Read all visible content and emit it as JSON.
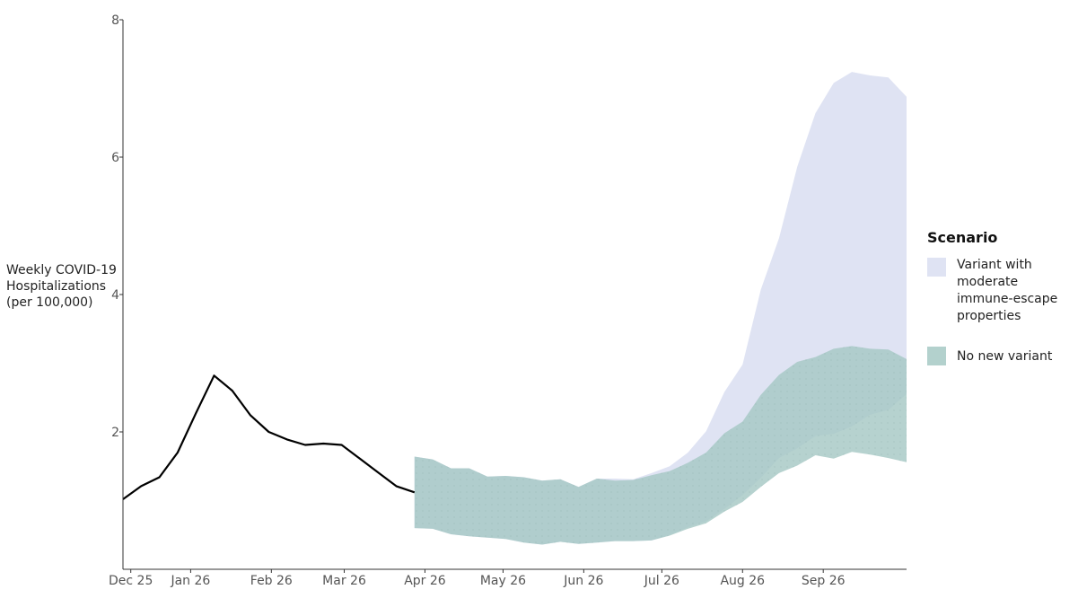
{
  "chart_data": {
    "type": "area",
    "title": "",
    "xlabel": "",
    "ylabel_lines": [
      "Weekly COVID-19",
      "Hospitalizations",
      "(per 100,000)"
    ],
    "ylim": [
      0,
      8
    ],
    "y_ticks": [
      2,
      4,
      6,
      8
    ],
    "x_ticks": [
      "Dec 25",
      "Jan 26",
      "Feb 26",
      "Mar 26",
      "Apr 26",
      "May 26",
      "Jun 26",
      "Jul 26",
      "Aug 26",
      "Sep 26"
    ],
    "observed": {
      "color": "#000000",
      "x": [
        "2025-12-20",
        "2025-12-27",
        "2026-01-03",
        "2026-01-10",
        "2026-01-17",
        "2026-01-24",
        "2026-01-31",
        "2026-02-07",
        "2026-02-14",
        "2026-02-21",
        "2026-02-28",
        "2026-03-07",
        "2026-03-14",
        "2026-03-21",
        "2026-03-28",
        "2026-04-04",
        "2026-04-11"
      ],
      "y": [
        1.02,
        1.21,
        1.34,
        1.7,
        2.27,
        2.82,
        2.6,
        2.24,
        2.0,
        1.89,
        1.81,
        1.83,
        1.81,
        1.61,
        1.41,
        1.21,
        1.12
      ]
    },
    "legend": {
      "title": "Scenario",
      "items": [
        {
          "lines": [
            "Variant with",
            "moderate",
            "immune-escape",
            "properties"
          ],
          "color": "#dfe3f3"
        },
        {
          "lines": [
            "No new variant"
          ],
          "color": "#b3d1cd"
        }
      ]
    },
    "series": [
      {
        "name": "Variant with moderate immune-escape properties",
        "color": "#dfe3f3",
        "opacity": 1,
        "x": [
          "2026-04-11",
          "2026-04-18",
          "2026-04-25",
          "2026-05-02",
          "2026-05-09",
          "2026-05-16",
          "2026-05-23",
          "2026-05-30",
          "2026-06-06",
          "2026-06-13",
          "2026-06-20",
          "2026-06-27",
          "2026-07-04",
          "2026-07-11",
          "2026-07-18",
          "2026-07-25",
          "2026-08-01",
          "2026-08-08",
          "2026-08-15",
          "2026-08-22",
          "2026-08-29",
          "2026-09-05",
          "2026-09-12",
          "2026-09-19",
          "2026-09-26",
          "2026-10-03",
          "2026-10-10",
          "2026-10-17"
        ],
        "lower": [
          0.6,
          0.59,
          0.51,
          0.48,
          0.46,
          0.44,
          0.39,
          0.36,
          0.4,
          0.37,
          0.39,
          0.41,
          0.41,
          0.42,
          0.5,
          0.61,
          0.7,
          0.88,
          1.08,
          1.33,
          1.62,
          1.76,
          1.94,
          1.97,
          2.08,
          2.25,
          2.32,
          2.55
        ],
        "upper": [
          1.64,
          1.6,
          1.47,
          1.47,
          1.35,
          1.36,
          1.34,
          1.29,
          1.31,
          1.2,
          1.32,
          1.32,
          1.31,
          1.4,
          1.5,
          1.7,
          2.01,
          2.58,
          2.98,
          4.07,
          4.82,
          5.86,
          6.64,
          7.08,
          7.24,
          7.19,
          7.16,
          6.88
        ]
      },
      {
        "name": "No new variant",
        "color": "#a6c8c4",
        "opacity": 0.82,
        "x": [
          "2026-04-11",
          "2026-04-18",
          "2026-04-25",
          "2026-05-02",
          "2026-05-09",
          "2026-05-16",
          "2026-05-23",
          "2026-05-30",
          "2026-06-06",
          "2026-06-13",
          "2026-06-20",
          "2026-06-27",
          "2026-07-04",
          "2026-07-11",
          "2026-07-18",
          "2026-07-25",
          "2026-08-01",
          "2026-08-08",
          "2026-08-15",
          "2026-08-22",
          "2026-08-29",
          "2026-09-05",
          "2026-09-12",
          "2026-09-19",
          "2026-09-26",
          "2026-10-03",
          "2026-10-10",
          "2026-10-17"
        ],
        "lower": [
          0.6,
          0.59,
          0.51,
          0.48,
          0.46,
          0.44,
          0.39,
          0.36,
          0.4,
          0.37,
          0.39,
          0.41,
          0.41,
          0.42,
          0.49,
          0.59,
          0.67,
          0.84,
          0.98,
          1.2,
          1.4,
          1.51,
          1.66,
          1.61,
          1.71,
          1.67,
          1.62,
          1.56
        ],
        "upper": [
          1.64,
          1.6,
          1.47,
          1.47,
          1.35,
          1.36,
          1.34,
          1.29,
          1.31,
          1.2,
          1.32,
          1.29,
          1.3,
          1.37,
          1.43,
          1.55,
          1.7,
          1.98,
          2.15,
          2.54,
          2.83,
          3.02,
          3.09,
          3.21,
          3.25,
          3.21,
          3.2,
          3.06
        ]
      }
    ]
  }
}
